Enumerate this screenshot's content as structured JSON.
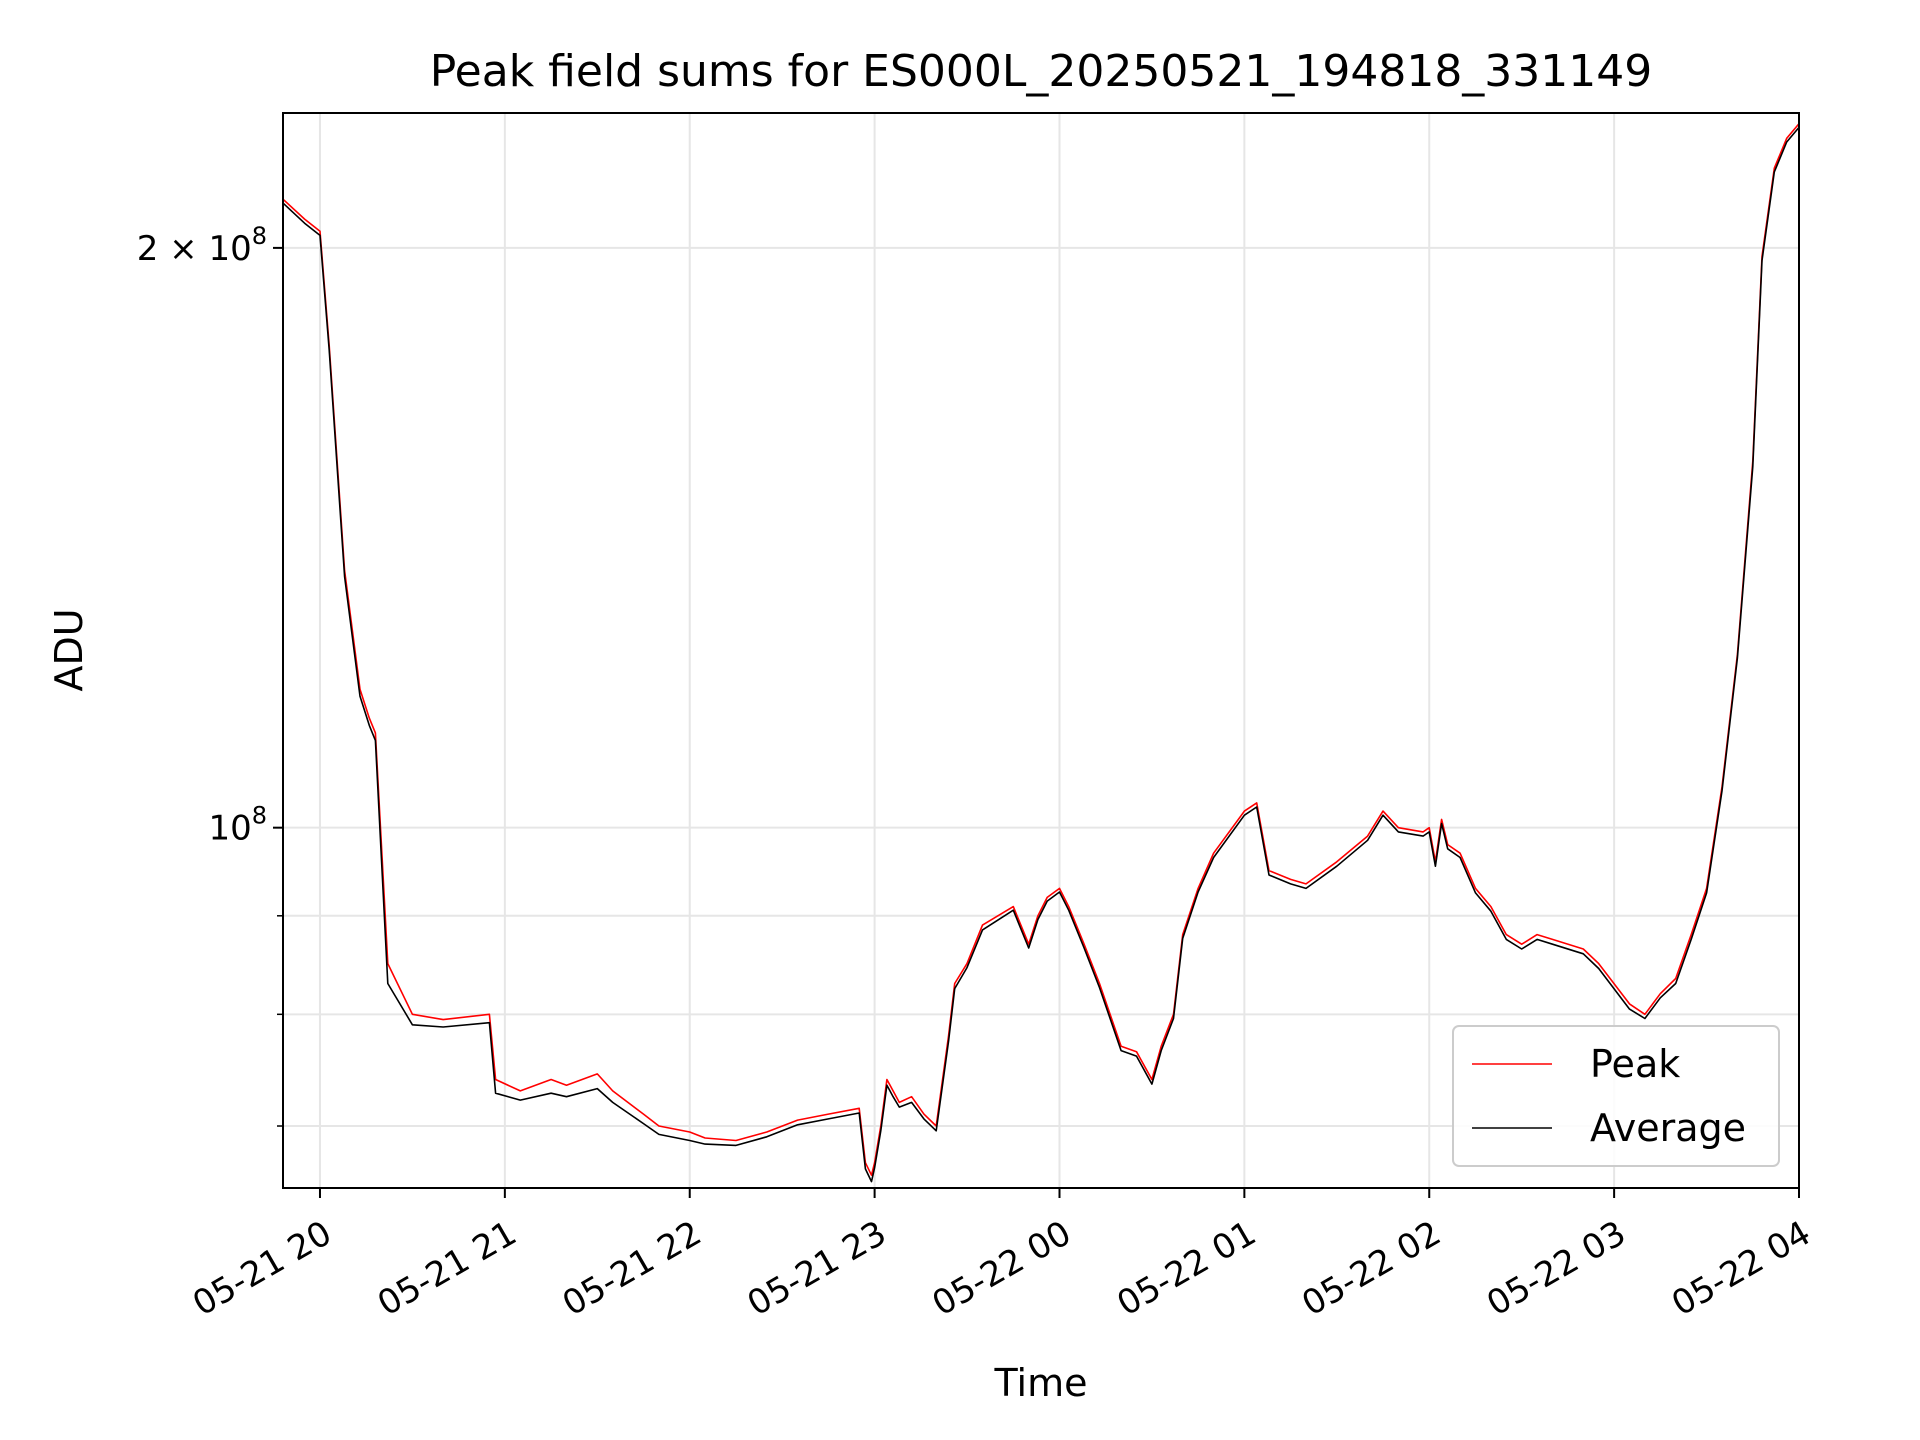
{
  "chart_data": {
    "type": "line",
    "title": "Peak field sums for ES000L_20250521_194818_331149",
    "xlabel": "Time",
    "ylabel": "ADU",
    "yscale": "log",
    "xlim": [
      "2025-05-21 19:48",
      "2025-05-22 04:00"
    ],
    "ylim": [
      65000000,
      235000000
    ],
    "grid": true,
    "legend_position": "lower-right",
    "x_ticks": [
      "05-21 20",
      "05-21 21",
      "05-21 22",
      "05-21 23",
      "05-22 00",
      "05-22 01",
      "05-22 02",
      "05-22 03",
      "05-22 04"
    ],
    "y_ticks": [
      {
        "value": 100000000,
        "label_base": "10",
        "label_exp": "8"
      },
      {
        "value": 200000000,
        "label_base": "2 × 10",
        "label_exp": "8"
      }
    ],
    "series": [
      {
        "name": "Peak",
        "color": "#ff0000",
        "x": [
          "2025-05-21 19:48",
          "2025-05-21 19:55",
          "2025-05-21 20:00",
          "2025-05-21 20:03",
          "2025-05-21 20:08",
          "2025-05-21 20:13",
          "2025-05-21 20:16",
          "2025-05-21 20:18",
          "2025-05-21 20:22",
          "2025-05-21 20:30",
          "2025-05-21 20:40",
          "2025-05-21 20:55",
          "2025-05-21 20:57",
          "2025-05-21 21:05",
          "2025-05-21 21:15",
          "2025-05-21 21:20",
          "2025-05-21 21:30",
          "2025-05-21 21:35",
          "2025-05-21 21:45",
          "2025-05-21 21:50",
          "2025-05-21 22:00",
          "2025-05-21 22:05",
          "2025-05-21 22:15",
          "2025-05-21 22:25",
          "2025-05-21 22:35",
          "2025-05-21 22:45",
          "2025-05-21 22:55",
          "2025-05-21 22:57",
          "2025-05-21 22:59",
          "2025-05-21 23:00",
          "2025-05-21 23:02",
          "2025-05-21 23:04",
          "2025-05-21 23:06",
          "2025-05-21 23:08",
          "2025-05-21 23:12",
          "2025-05-21 23:16",
          "2025-05-21 23:20",
          "2025-05-21 23:24",
          "2025-05-21 23:26",
          "2025-05-21 23:30",
          "2025-05-21 23:35",
          "2025-05-21 23:45",
          "2025-05-21 23:50",
          "2025-05-21 23:53",
          "2025-05-21 23:56",
          "2025-05-22 00:00",
          "2025-05-22 00:03",
          "2025-05-22 00:08",
          "2025-05-22 00:13",
          "2025-05-22 00:20",
          "2025-05-22 00:25",
          "2025-05-22 00:30",
          "2025-05-22 00:33",
          "2025-05-22 00:37",
          "2025-05-22 00:40",
          "2025-05-22 00:45",
          "2025-05-22 00:50",
          "2025-05-22 01:00",
          "2025-05-22 01:04",
          "2025-05-22 01:08",
          "2025-05-22 01:15",
          "2025-05-22 01:20",
          "2025-05-22 01:30",
          "2025-05-22 01:40",
          "2025-05-22 01:45",
          "2025-05-22 01:50",
          "2025-05-22 01:58",
          "2025-05-22 02:00",
          "2025-05-22 02:02",
          "2025-05-22 02:04",
          "2025-05-22 02:06",
          "2025-05-22 02:10",
          "2025-05-22 02:15",
          "2025-05-22 02:20",
          "2025-05-22 02:25",
          "2025-05-22 02:30",
          "2025-05-22 02:35",
          "2025-05-22 02:40",
          "2025-05-22 02:50",
          "2025-05-22 02:55",
          "2025-05-22 03:05",
          "2025-05-22 03:10",
          "2025-05-22 03:15",
          "2025-05-22 03:20",
          "2025-05-22 03:25",
          "2025-05-22 03:30",
          "2025-05-22 03:35",
          "2025-05-22 03:40",
          "2025-05-22 03:45",
          "2025-05-22 03:48",
          "2025-05-22 03:52",
          "2025-05-22 03:56",
          "2025-05-22 04:00"
        ],
        "y": [
          212000000,
          207000000,
          204000000,
          178000000,
          136000000,
          118000000,
          114000000,
          112000000,
          85000000,
          80000000,
          79500000,
          80000000,
          74000000,
          73000000,
          74000000,
          73500000,
          74500000,
          73000000,
          71000000,
          70000000,
          69500000,
          69000000,
          68800000,
          69500000,
          70500000,
          71000000,
          71500000,
          67000000,
          66000000,
          67000000,
          70000000,
          74000000,
          73000000,
          72000000,
          72500000,
          71000000,
          70000000,
          78000000,
          83000000,
          85000000,
          89000000,
          91000000,
          87000000,
          90000000,
          92000000,
          93000000,
          91000000,
          87000000,
          83000000,
          77000000,
          76500000,
          74000000,
          77000000,
          80000000,
          88000000,
          93000000,
          97000000,
          102000000,
          103000000,
          95000000,
          94000000,
          93500000,
          96000000,
          99000000,
          102000000,
          100000000,
          99500000,
          100000000,
          96000000,
          101000000,
          98000000,
          97000000,
          93000000,
          91000000,
          88000000,
          87000000,
          88000000,
          87500000,
          86500000,
          85000000,
          81000000,
          80000000,
          82000000,
          83500000,
          88000000,
          93000000,
          105000000,
          123000000,
          155000000,
          198000000,
          220000000,
          228000000,
          232000000
        ]
      },
      {
        "name": "Average",
        "color": "#000000",
        "x": [
          "2025-05-21 19:48",
          "2025-05-21 19:55",
          "2025-05-21 20:00",
          "2025-05-21 20:03",
          "2025-05-21 20:08",
          "2025-05-21 20:13",
          "2025-05-21 20:16",
          "2025-05-21 20:18",
          "2025-05-21 20:22",
          "2025-05-21 20:30",
          "2025-05-21 20:40",
          "2025-05-21 20:55",
          "2025-05-21 20:57",
          "2025-05-21 21:05",
          "2025-05-21 21:15",
          "2025-05-21 21:20",
          "2025-05-21 21:30",
          "2025-05-21 21:35",
          "2025-05-21 21:45",
          "2025-05-21 21:50",
          "2025-05-21 22:00",
          "2025-05-21 22:05",
          "2025-05-21 22:15",
          "2025-05-21 22:25",
          "2025-05-21 22:35",
          "2025-05-21 22:45",
          "2025-05-21 22:55",
          "2025-05-21 22:57",
          "2025-05-21 22:59",
          "2025-05-21 23:00",
          "2025-05-21 23:02",
          "2025-05-21 23:04",
          "2025-05-21 23:06",
          "2025-05-21 23:08",
          "2025-05-21 23:12",
          "2025-05-21 23:16",
          "2025-05-21 23:20",
          "2025-05-21 23:24",
          "2025-05-21 23:26",
          "2025-05-21 23:30",
          "2025-05-21 23:35",
          "2025-05-21 23:45",
          "2025-05-21 23:50",
          "2025-05-21 23:53",
          "2025-05-21 23:56",
          "2025-05-22 00:00",
          "2025-05-22 00:03",
          "2025-05-22 00:08",
          "2025-05-22 00:13",
          "2025-05-22 00:20",
          "2025-05-22 00:25",
          "2025-05-22 00:30",
          "2025-05-22 00:33",
          "2025-05-22 00:37",
          "2025-05-22 00:40",
          "2025-05-22 00:45",
          "2025-05-22 00:50",
          "2025-05-22 01:00",
          "2025-05-22 01:04",
          "2025-05-22 01:08",
          "2025-05-22 01:15",
          "2025-05-22 01:20",
          "2025-05-22 01:30",
          "2025-05-22 01:40",
          "2025-05-22 01:45",
          "2025-05-22 01:50",
          "2025-05-22 01:58",
          "2025-05-22 02:00",
          "2025-05-22 02:02",
          "2025-05-22 02:04",
          "2025-05-22 02:06",
          "2025-05-22 02:10",
          "2025-05-22 02:15",
          "2025-05-22 02:20",
          "2025-05-22 02:25",
          "2025-05-22 02:30",
          "2025-05-22 02:35",
          "2025-05-22 02:40",
          "2025-05-22 02:50",
          "2025-05-22 02:55",
          "2025-05-22 03:05",
          "2025-05-22 03:10",
          "2025-05-22 03:15",
          "2025-05-22 03:20",
          "2025-05-22 03:25",
          "2025-05-22 03:30",
          "2025-05-22 03:35",
          "2025-05-22 03:40",
          "2025-05-22 03:45",
          "2025-05-22 03:48",
          "2025-05-22 03:52",
          "2025-05-22 03:56",
          "2025-05-22 04:00"
        ],
        "y": [
          211000000,
          206000000,
          203000000,
          177000000,
          135000000,
          117000000,
          113000000,
          111000000,
          83000000,
          79000000,
          78800000,
          79200000,
          72800000,
          72200000,
          72800000,
          72500000,
          73200000,
          72000000,
          70200000,
          69300000,
          68800000,
          68500000,
          68400000,
          69100000,
          70100000,
          70600000,
          71100000,
          66500000,
          65500000,
          66600000,
          69600000,
          73500000,
          72500000,
          71600000,
          72000000,
          70600000,
          69600000,
          77500000,
          82500000,
          84600000,
          88500000,
          90600000,
          86600000,
          89600000,
          91600000,
          92600000,
          90600000,
          86600000,
          82600000,
          76600000,
          76100000,
          73600000,
          76600000,
          79600000,
          87600000,
          92600000,
          96500000,
          101500000,
          102500000,
          94500000,
          93500000,
          93000000,
          95500000,
          98500000,
          101500000,
          99500000,
          99000000,
          99500000,
          95500000,
          100500000,
          97500000,
          96500000,
          92500000,
          90500000,
          87500000,
          86500000,
          87500000,
          87000000,
          86000000,
          84500000,
          80500000,
          79600000,
          81600000,
          83000000,
          87500000,
          92500000,
          104500000,
          122500000,
          154000000,
          197000000,
          219000000,
          227000000,
          231000000
        ]
      }
    ]
  }
}
